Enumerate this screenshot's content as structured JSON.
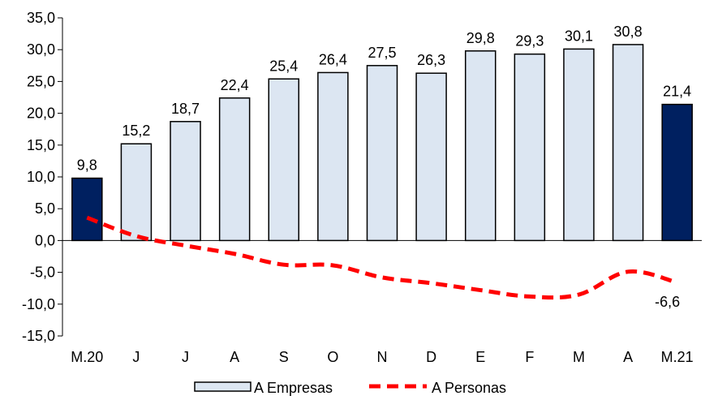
{
  "chart_data": {
    "type": "bar",
    "categories": [
      "M.20",
      "J",
      "J",
      "A",
      "S",
      "O",
      "N",
      "D",
      "E",
      "F",
      "M",
      "A",
      "M.21"
    ],
    "series": [
      {
        "name": "A Empresas",
        "kind": "bar",
        "values": [
          9.8,
          15.2,
          18.7,
          22.4,
          25.4,
          26.4,
          27.5,
          26.3,
          29.8,
          29.3,
          30.1,
          30.8,
          21.4
        ],
        "labels": [
          "9,8",
          "15,2",
          "18,7",
          "22,4",
          "25,4",
          "26,4",
          "27,5",
          "26,3",
          "29,8",
          "29,3",
          "30,1",
          "30,8",
          "21,4"
        ],
        "highlighted_indices": [
          0,
          12
        ]
      },
      {
        "name": "A Personas",
        "kind": "line",
        "style": "dashed",
        "values": [
          3.6,
          0.7,
          -0.8,
          -2.1,
          -3.8,
          -3.9,
          -5.8,
          -6.7,
          -7.8,
          -8.8,
          -8.5,
          -4.9,
          -6.6
        ],
        "end_label": "-6,6"
      }
    ],
    "ylim": [
      -15,
      35
    ],
    "yticks": [
      "-15,0",
      "-10,0",
      "-5,0",
      "0,0",
      "5,0",
      "10,0",
      "15,0",
      "20,0",
      "25,0",
      "30,0",
      "35,0"
    ],
    "ytick_values": [
      -15,
      -10,
      -5,
      0,
      5,
      10,
      15,
      20,
      25,
      30,
      35
    ],
    "title": "",
    "xlabel": "",
    "ylabel": "",
    "grid": false,
    "legend_position": "bottom",
    "colors": {
      "bar_fill": "#dce6f2",
      "bar_highlight": "#002060",
      "bar_stroke": "#000000",
      "line": "#ff0000",
      "axis": "#000000"
    }
  }
}
